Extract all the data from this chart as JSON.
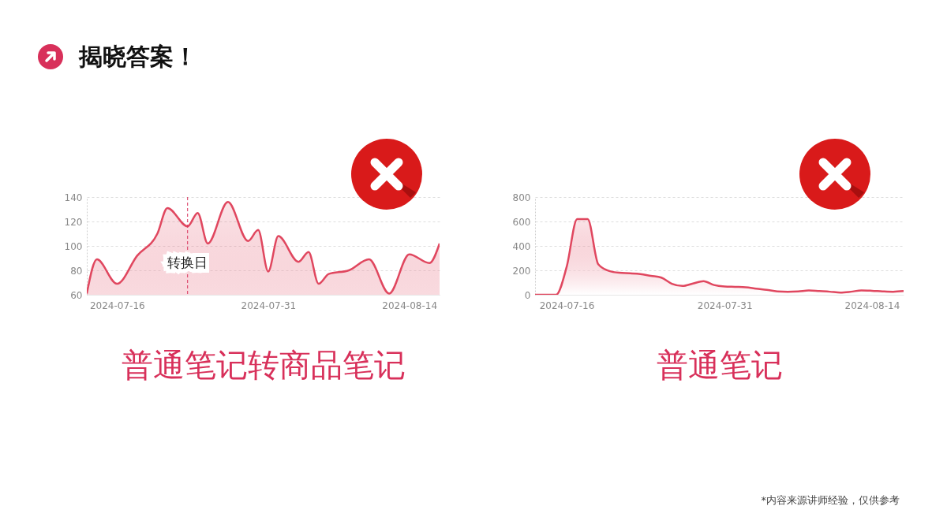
{
  "chart_data": [
    {
      "type": "area",
      "title": "普通笔记转商品笔记",
      "annotations": [
        "揭晓答案！"
      ],
      "x": [
        "2024-07-13",
        "2024-07-14",
        "2024-07-16",
        "2024-07-18",
        "2024-07-20",
        "2024-07-21",
        "2024-07-23",
        "2024-07-24",
        "2024-07-25",
        "2024-07-27",
        "2024-07-29",
        "2024-07-30",
        "2024-07-31",
        "2024-08-01",
        "2024-08-03",
        "2024-08-04",
        "2024-08-05",
        "2024-08-06",
        "2024-08-08",
        "2024-08-10",
        "2024-08-12",
        "2024-08-14",
        "2024-08-16",
        "2024-08-17"
      ],
      "series": [
        {
          "color": "#e0475f",
          "values": [
            61,
            89,
            69,
            92,
            110,
            131,
            116,
            127,
            102,
            136,
            104,
            113,
            79,
            108,
            87,
            95,
            69,
            77,
            80,
            89,
            61,
            93,
            86,
            102
          ]
        }
      ],
      "xlim": [
        "2024-07-13",
        "2024-08-17"
      ],
      "xticks": [
        "2024-07-16",
        "2024-07-31",
        "2024-08-14"
      ],
      "ylim": [
        60,
        140
      ],
      "yticks": [
        60,
        80,
        100,
        120,
        140
      ],
      "grid": "y",
      "ref_lines": [
        {
          "axis": "x",
          "value": "2024-07-23",
          "label": "转换日",
          "color": "#d8305a",
          "line_style": "dashed"
        }
      ]
    },
    {
      "type": "area",
      "title": "普通笔记",
      "annotations": [
        "*内容来源讲师经验，仅供参考"
      ],
      "x": [
        "2024-07-13",
        "2024-07-14",
        "2024-07-15",
        "2024-07-16",
        "2024-07-17",
        "2024-07-18",
        "2024-07-19",
        "2024-07-20",
        "2024-07-21",
        "2024-07-22",
        "2024-07-23",
        "2024-07-24",
        "2024-07-25",
        "2024-07-26",
        "2024-07-27",
        "2024-07-28",
        "2024-07-29",
        "2024-07-30",
        "2024-07-31",
        "2024-08-01",
        "2024-08-02",
        "2024-08-03",
        "2024-08-04",
        "2024-08-05",
        "2024-08-06",
        "2024-08-07",
        "2024-08-08",
        "2024-08-09",
        "2024-08-10",
        "2024-08-11",
        "2024-08-12",
        "2024-08-13",
        "2024-08-14",
        "2024-08-15",
        "2024-08-16",
        "2024-08-17"
      ],
      "series": [
        {
          "color": "#e0475f",
          "values": [
            0,
            0,
            0,
            228,
            620,
            620,
            250,
            196,
            180,
            176,
            170,
            155,
            140,
            90,
            72,
            92,
            112,
            80,
            68,
            65,
            62,
            50,
            40,
            28,
            25,
            28,
            35,
            30,
            25,
            18,
            25,
            36,
            33,
            28,
            25,
            30
          ]
        }
      ],
      "xlim": [
        "2024-07-13",
        "2024-08-17"
      ],
      "xticks": [
        "2024-07-16",
        "2024-07-31",
        "2024-08-14"
      ],
      "ylim": [
        0,
        800
      ],
      "yticks": [
        0,
        200,
        400,
        600,
        800
      ],
      "grid": "y"
    }
  ]
}
